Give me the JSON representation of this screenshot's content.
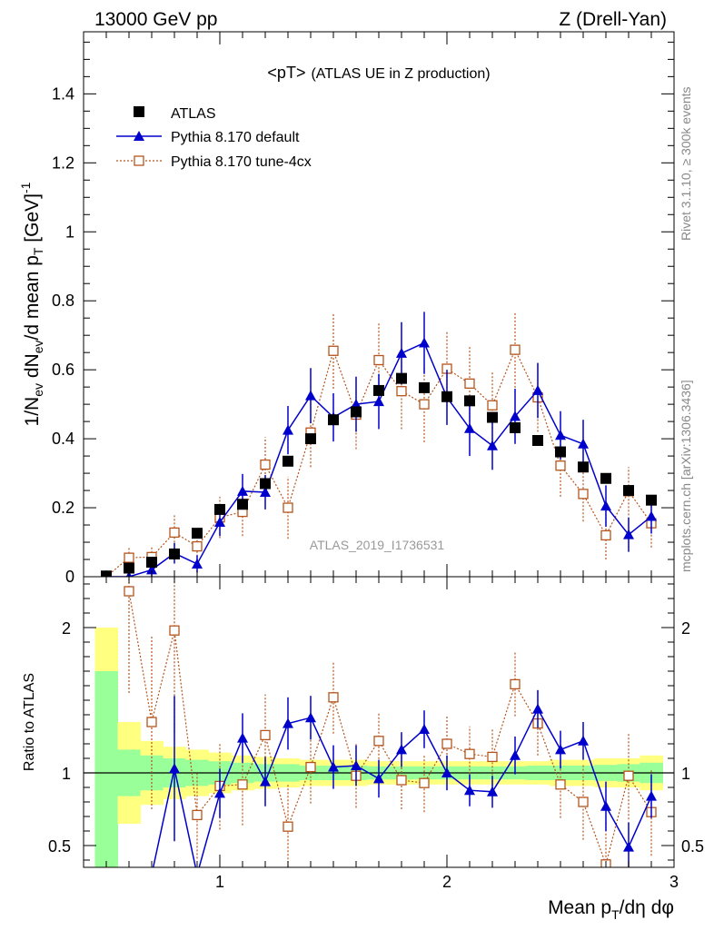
{
  "header": {
    "left_title": "13000 GeV pp",
    "right_title": "Z (Drell-Yan)"
  },
  "main_panel": {
    "title_main": "<pT>",
    "title_sub": "(ATLAS UE in Z production)",
    "watermark": "ATLAS_2019_I1736531",
    "ylabel": "1/N_ev dN_ev/d mean p_T [GeV]^-1"
  },
  "ratio_panel": {
    "ylabel": "Ratio to ATLAS"
  },
  "xlabel": "Mean p_T/dη dφ",
  "side_text": {
    "rivet": "Rivet 3.1.10, ≥ 300k events",
    "mcplots": "mcplots.cern.ch [arXiv:1306.3436]"
  },
  "legend": [
    {
      "label": "ATLAS",
      "color": "#000000",
      "marker": "square"
    },
    {
      "label": "Pythia 8.170 default",
      "color": "#0000cc",
      "marker": "triangle"
    },
    {
      "label": "Pythia 8.170 tune-4cx",
      "color": "#b5541c",
      "marker": "open-square"
    }
  ],
  "chart_data": {
    "type": "scatter",
    "x_range": [
      0.4,
      3.0
    ],
    "main_ylim": [
      0,
      1.58
    ],
    "main_yticks": [
      0,
      0.2,
      0.4,
      0.6,
      0.8,
      1,
      1.2,
      1.4
    ],
    "main_ytick_labels": [
      "0",
      "0.2",
      "0.4",
      "0.6",
      "0.8",
      "1",
      "1.2",
      "1.4"
    ],
    "ratio_ylim": [
      0.35,
      2.35
    ],
    "ratio_yticks": [
      0.5,
      1,
      2
    ],
    "ratio_ytick_labels": [
      "0.5",
      "1",
      "2"
    ],
    "xticks": [
      1,
      2,
      3
    ],
    "xtick_labels": [
      "1",
      "2",
      "3"
    ],
    "x": [
      0.5,
      0.6,
      0.7,
      0.8,
      0.9,
      1.0,
      1.1,
      1.2,
      1.3,
      1.4,
      1.5,
      1.6,
      1.7,
      1.8,
      1.9,
      2.0,
      2.1,
      2.2,
      2.3,
      2.4,
      2.5,
      2.6,
      2.7,
      2.8,
      2.9
    ],
    "series": [
      {
        "name": "ATLAS",
        "values": [
          0.002,
          0.025,
          0.042,
          0.066,
          0.126,
          0.195,
          0.21,
          0.27,
          0.335,
          0.4,
          0.455,
          0.478,
          0.54,
          0.575,
          0.548,
          0.522,
          0.51,
          0.462,
          0.432,
          0.395,
          0.362,
          0.318,
          0.285,
          0.25,
          0.222
        ]
      },
      {
        "name": "Pythia 8.170 default",
        "values": [
          0.0,
          0.0,
          0.02,
          0.068,
          0.037,
          0.158,
          0.248,
          0.245,
          0.425,
          0.525,
          0.462,
          0.5,
          0.508,
          0.648,
          0.678,
          0.52,
          0.43,
          0.38,
          0.465,
          0.54,
          0.41,
          0.385,
          0.205,
          0.122,
          0.175
        ],
        "errors": [
          0,
          0,
          0.02,
          0.03,
          0.025,
          0.04,
          0.05,
          0.05,
          0.07,
          0.08,
          0.07,
          0.08,
          0.08,
          0.09,
          0.09,
          0.08,
          0.08,
          0.07,
          0.08,
          0.08,
          0.07,
          0.07,
          0.06,
          0.05,
          0.05
        ]
      },
      {
        "name": "Pythia 8.170 tune-4cx",
        "values": [
          0.0,
          0.055,
          0.057,
          0.128,
          0.088,
          0.172,
          0.188,
          0.325,
          0.2,
          0.418,
          0.655,
          0.47,
          0.628,
          0.538,
          0.5,
          0.603,
          0.56,
          0.497,
          0.658,
          0.52,
          0.322,
          0.24,
          0.12,
          0.248,
          0.155
        ],
        "errors": [
          0,
          0.03,
          0.03,
          0.05,
          0.04,
          0.06,
          0.07,
          0.08,
          0.09,
          0.1,
          0.11,
          0.1,
          0.11,
          0.11,
          0.11,
          0.11,
          0.11,
          0.1,
          0.11,
          0.1,
          0.09,
          0.08,
          0.07,
          0.07,
          0.07
        ]
      }
    ],
    "ratio_series": [
      {
        "name": "Pythia 8.170 default",
        "values": [
          null,
          null,
          0.3,
          1.03,
          0.3,
          0.86,
          1.24,
          0.94,
          1.34,
          1.38,
          1.04,
          1.05,
          0.96,
          1.16,
          1.3,
          1.0,
          0.88,
          0.87,
          1.12,
          1.44,
          1.16,
          1.22,
          0.77,
          0.49,
          0.84
        ],
        "errors": [
          0,
          0,
          0,
          0.5,
          0,
          0.17,
          0.17,
          0.17,
          0.18,
          0.15,
          0.15,
          0.14,
          0.13,
          0.12,
          0.13,
          0.12,
          0.11,
          0.11,
          0.13,
          0.13,
          0.13,
          0.13,
          0.17,
          0.17,
          0.15
        ]
      },
      {
        "name": "Pythia 8.170 tune-4cx",
        "values": [
          null,
          2.25,
          1.35,
          1.98,
          0.71,
          0.91,
          0.92,
          1.26,
          0.63,
          1.04,
          1.52,
          0.98,
          1.22,
          0.95,
          0.93,
          1.2,
          1.13,
          1.11,
          1.61,
          1.34,
          0.92,
          0.8,
          0.37,
          0.98,
          0.73
        ],
        "errors": [
          0,
          0.7,
          0.6,
          0.7,
          0.3,
          0.3,
          0.28,
          0.28,
          0.3,
          0.25,
          0.25,
          0.22,
          0.2,
          0.2,
          0.2,
          0.2,
          0.19,
          0.2,
          0.22,
          0.22,
          0.23,
          0.26,
          0.3,
          0.3,
          0.3
        ]
      }
    ],
    "ratio_bands": {
      "yellow_halfwidth": [
        1.0,
        0.35,
        0.22,
        0.18,
        0.16,
        0.14,
        0.12,
        0.11,
        0.1,
        0.09,
        0.09,
        0.09,
        0.08,
        0.08,
        0.08,
        0.08,
        0.08,
        0.08,
        0.08,
        0.08,
        0.09,
        0.09,
        0.1,
        0.1,
        0.12
      ],
      "green_halfwidth": [
        0.7,
        0.16,
        0.12,
        0.1,
        0.09,
        0.08,
        0.07,
        0.06,
        0.06,
        0.05,
        0.05,
        0.05,
        0.045,
        0.045,
        0.045,
        0.045,
        0.045,
        0.045,
        0.045,
        0.05,
        0.05,
        0.05,
        0.055,
        0.06,
        0.07
      ]
    }
  },
  "colors": {
    "atlas": "#000000",
    "default": "#0000cc",
    "tune": "#b5541c",
    "band_green": "#99ff99",
    "band_yellow": "#ffff80"
  }
}
